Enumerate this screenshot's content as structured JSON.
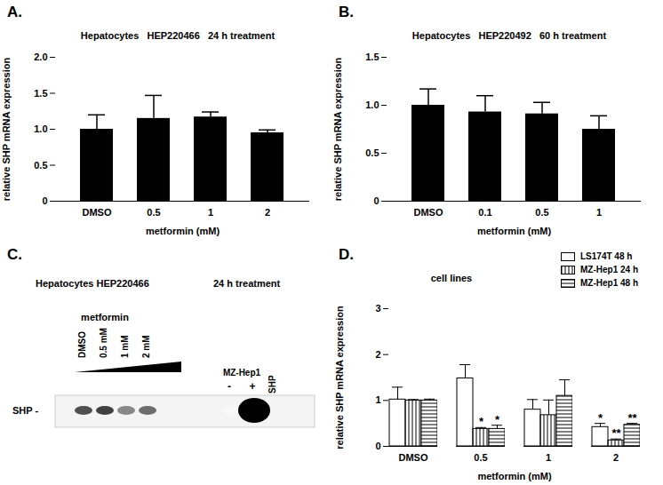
{
  "chart_data": [
    {
      "type": "bar",
      "panel": "A.",
      "title": "Hepatocytes   HEP220466   24 h treatment",
      "x_label": "metformin (mM)",
      "y_label": "relative SHP mRNA expression",
      "categories": [
        "DMSO",
        "0.5",
        "1",
        "2"
      ],
      "values": [
        1.0,
        1.15,
        1.17,
        0.95
      ],
      "errors": [
        0.2,
        0.32,
        0.07,
        0.04
      ],
      "color": "#000000",
      "ylim": [
        0,
        2
      ],
      "yticks": [
        0,
        0.5,
        {
          "value": 1,
          "label": "1.0"
        },
        1.5,
        {
          "value": 2,
          "label": "2.0"
        }
      ]
    },
    {
      "type": "bar",
      "panel": "B.",
      "title": "Hepatocytes   HEP220492   60 h treatment",
      "x_label": "metformin (mM)",
      "y_label": "relative SHP mRNA expression",
      "categories": [
        "DMSO",
        "0.1",
        "0.5",
        "1"
      ],
      "values": [
        1.0,
        0.93,
        0.91,
        0.75
      ],
      "errors": [
        0.17,
        0.17,
        0.12,
        0.14
      ],
      "color": "#000000",
      "ylim": [
        0,
        1.5
      ],
      "yticks": [
        0,
        0.5,
        {
          "value": 1,
          "label": "1.0"
        },
        1.5
      ]
    },
    {
      "type": "blot",
      "panel": "C.",
      "title": "Hepatocytes HEP220466",
      "subtitle": "24 h treatment",
      "treatment_label": "metformin",
      "control_label": "MZ-Hep1",
      "construct_label": "SHP",
      "band_label": "SHP -",
      "lanes": [
        {
          "label": "DMSO",
          "group": "metformin",
          "intensity": 0.75
        },
        {
          "label": "0.5 mM",
          "group": "metformin",
          "intensity": 0.8
        },
        {
          "label": "1 mM",
          "group": "metformin",
          "intensity": 0.55
        },
        {
          "label": "2 mM",
          "group": "metformin",
          "intensity": 0.65
        },
        {
          "label": "-",
          "group": "MZ-Hep1",
          "intensity": 0.05
        },
        {
          "label": "+",
          "group": "MZ-Hep1",
          "intensity": 1.0
        }
      ]
    },
    {
      "type": "bar",
      "panel": "D.",
      "title": "cell lines",
      "x_label": "metformin (mM)",
      "y_label": "relative SHP mRNA expression",
      "categories": [
        "DMSO",
        "0.5",
        "1",
        "2"
      ],
      "series": [
        {
          "name": "LS174T 48 h",
          "color": "#ffffff",
          "values": [
            1.02,
            1.48,
            0.8,
            0.42
          ],
          "errors": [
            0.27,
            0.3,
            0.22,
            0.08
          ]
        },
        {
          "name": "MZ-Hep1 24 h",
          "color": "#ffffff",
          "values": [
            1.0,
            0.38,
            0.68,
            0.13
          ],
          "errors": [
            0.02,
            0.03,
            0.33,
            0.03
          ]
        },
        {
          "name": "MZ-Hep1 48 h",
          "color": "#ffffff",
          "values": [
            1.0,
            0.38,
            1.1,
            0.47
          ],
          "errors": [
            0.03,
            0.08,
            0.35,
            0.03
          ]
        }
      ],
      "annotations": [
        {
          "category": "2",
          "series": "LS174T 48 h",
          "text": "*"
        },
        {
          "category": "0.5",
          "series": "MZ-Hep1 24 h",
          "text": "*"
        },
        {
          "category": "0.5",
          "series": "MZ-Hep1 48 h",
          "text": "*"
        },
        {
          "category": "2",
          "series": "MZ-Hep1 24 h",
          "text": "**"
        },
        {
          "category": "2",
          "series": "MZ-Hep1 48 h",
          "text": "**"
        }
      ],
      "legend": "top-right",
      "ylim": [
        0,
        3
      ],
      "yticks": [
        0,
        1,
        2,
        3
      ]
    }
  ]
}
